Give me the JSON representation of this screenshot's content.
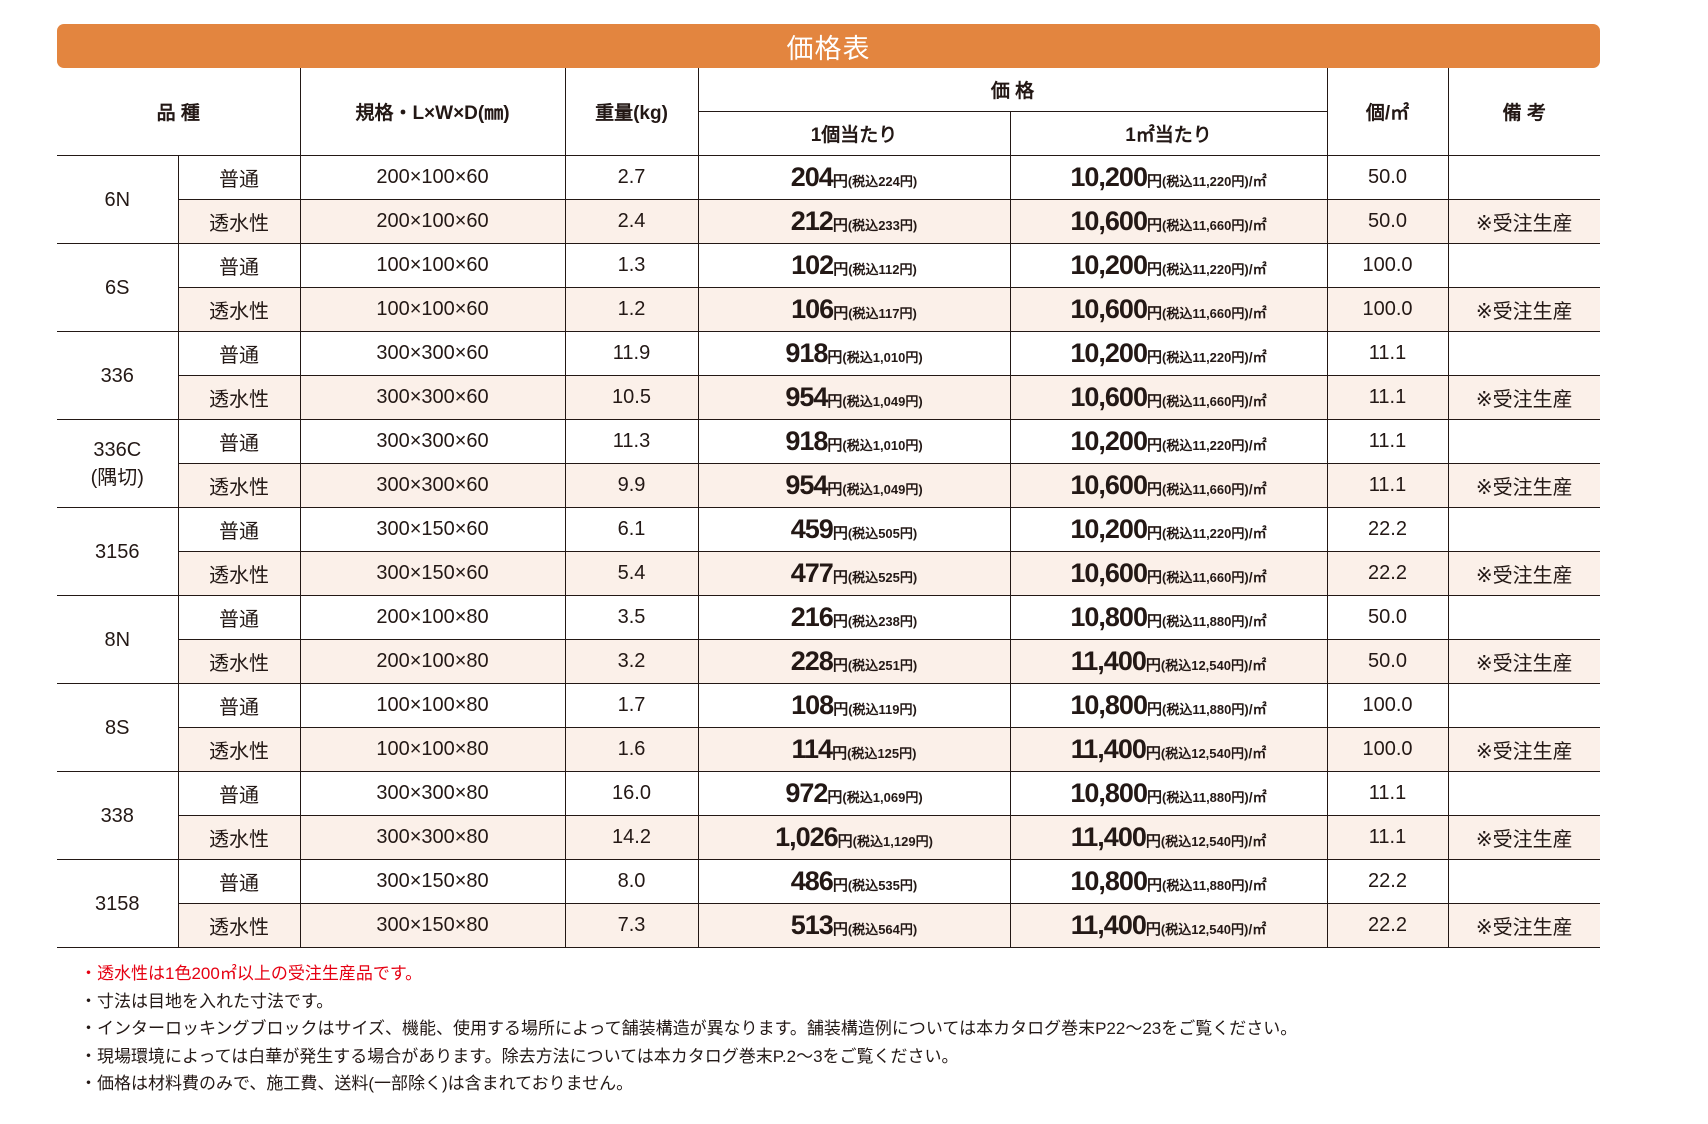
{
  "title": "価格表",
  "header": {
    "variety": "品 種",
    "spec": "規格・L×W×D(㎜)",
    "weight": "重量(kg)",
    "price": "価 格",
    "per_piece": "1個当たり",
    "per_m2": "1㎡当たり",
    "pieces_per_m2": "個/㎡",
    "remarks": "備 考"
  },
  "currency": "円",
  "tax_prefix": "(税込",
  "tax_suffix": "円)",
  "per_m2_suffix": "/㎡",
  "groups": [
    {
      "name": "6N",
      "rows": [
        {
          "type": "普通",
          "spec": "200×100×60",
          "weight": "2.7",
          "unit_price": "204",
          "unit_tax": "224",
          "m2_price": "10,200",
          "m2_tax": "11,220",
          "pcs": "50.0",
          "remark": ""
        },
        {
          "type": "透水性",
          "spec": "200×100×60",
          "weight": "2.4",
          "unit_price": "212",
          "unit_tax": "233",
          "m2_price": "10,600",
          "m2_tax": "11,660",
          "pcs": "50.0",
          "remark": "※受注生産"
        }
      ]
    },
    {
      "name": "6S",
      "rows": [
        {
          "type": "普通",
          "spec": "100×100×60",
          "weight": "1.3",
          "unit_price": "102",
          "unit_tax": "112",
          "m2_price": "10,200",
          "m2_tax": "11,220",
          "pcs": "100.0",
          "remark": ""
        },
        {
          "type": "透水性",
          "spec": "100×100×60",
          "weight": "1.2",
          "unit_price": "106",
          "unit_tax": "117",
          "m2_price": "10,600",
          "m2_tax": "11,660",
          "pcs": "100.0",
          "remark": "※受注生産"
        }
      ]
    },
    {
      "name": "336",
      "rows": [
        {
          "type": "普通",
          "spec": "300×300×60",
          "weight": "11.9",
          "unit_price": "918",
          "unit_tax": "1,010",
          "m2_price": "10,200",
          "m2_tax": "11,220",
          "pcs": "11.1",
          "remark": ""
        },
        {
          "type": "透水性",
          "spec": "300×300×60",
          "weight": "10.5",
          "unit_price": "954",
          "unit_tax": "1,049",
          "m2_price": "10,600",
          "m2_tax": "11,660",
          "pcs": "11.1",
          "remark": "※受注生産"
        }
      ]
    },
    {
      "name": "336C",
      "sub": "(隅切)",
      "rows": [
        {
          "type": "普通",
          "spec": "300×300×60",
          "weight": "11.3",
          "unit_price": "918",
          "unit_tax": "1,010",
          "m2_price": "10,200",
          "m2_tax": "11,220",
          "pcs": "11.1",
          "remark": ""
        },
        {
          "type": "透水性",
          "spec": "300×300×60",
          "weight": "9.9",
          "unit_price": "954",
          "unit_tax": "1,049",
          "m2_price": "10,600",
          "m2_tax": "11,660",
          "pcs": "11.1",
          "remark": "※受注生産"
        }
      ]
    },
    {
      "name": "3156",
      "rows": [
        {
          "type": "普通",
          "spec": "300×150×60",
          "weight": "6.1",
          "unit_price": "459",
          "unit_tax": "505",
          "m2_price": "10,200",
          "m2_tax": "11,220",
          "pcs": "22.2",
          "remark": ""
        },
        {
          "type": "透水性",
          "spec": "300×150×60",
          "weight": "5.4",
          "unit_price": "477",
          "unit_tax": "525",
          "m2_price": "10,600",
          "m2_tax": "11,660",
          "pcs": "22.2",
          "remark": "※受注生産"
        }
      ]
    },
    {
      "name": "8N",
      "rows": [
        {
          "type": "普通",
          "spec": "200×100×80",
          "weight": "3.5",
          "unit_price": "216",
          "unit_tax": "238",
          "m2_price": "10,800",
          "m2_tax": "11,880",
          "pcs": "50.0",
          "remark": ""
        },
        {
          "type": "透水性",
          "spec": "200×100×80",
          "weight": "3.2",
          "unit_price": "228",
          "unit_tax": "251",
          "m2_price": "11,400",
          "m2_tax": "12,540",
          "pcs": "50.0",
          "remark": "※受注生産"
        }
      ]
    },
    {
      "name": "8S",
      "rows": [
        {
          "type": "普通",
          "spec": "100×100×80",
          "weight": "1.7",
          "unit_price": "108",
          "unit_tax": "119",
          "m2_price": "10,800",
          "m2_tax": "11,880",
          "pcs": "100.0",
          "remark": ""
        },
        {
          "type": "透水性",
          "spec": "100×100×80",
          "weight": "1.6",
          "unit_price": "114",
          "unit_tax": "125",
          "m2_price": "11,400",
          "m2_tax": "12,540",
          "pcs": "100.0",
          "remark": "※受注生産"
        }
      ]
    },
    {
      "name": "338",
      "rows": [
        {
          "type": "普通",
          "spec": "300×300×80",
          "weight": "16.0",
          "unit_price": "972",
          "unit_tax": "1,069",
          "m2_price": "10,800",
          "m2_tax": "11,880",
          "pcs": "11.1",
          "remark": ""
        },
        {
          "type": "透水性",
          "spec": "300×300×80",
          "weight": "14.2",
          "unit_price": "1,026",
          "unit_tax": "1,129",
          "m2_price": "11,400",
          "m2_tax": "12,540",
          "pcs": "11.1",
          "remark": "※受注生産"
        }
      ]
    },
    {
      "name": "3158",
      "rows": [
        {
          "type": "普通",
          "spec": "300×150×80",
          "weight": "8.0",
          "unit_price": "486",
          "unit_tax": "535",
          "m2_price": "10,800",
          "m2_tax": "11,880",
          "pcs": "22.2",
          "remark": ""
        },
        {
          "type": "透水性",
          "spec": "300×150×80",
          "weight": "7.3",
          "unit_price": "513",
          "unit_tax": "564",
          "m2_price": "11,400",
          "m2_tax": "12,540",
          "pcs": "22.2",
          "remark": "※受注生産"
        }
      ]
    }
  ],
  "notes": [
    {
      "text": "・透水性は1色200㎡以上の受注生産品です。",
      "color": "#e60012"
    },
    {
      "text": "・寸法は目地を入れた寸法です。"
    },
    {
      "text": "・インターロッキングブロックはサイズ、機能、使用する場所によって舗装構造が異なります。舗装構造例については本カタログ巻末P22〜23をご覧ください。"
    },
    {
      "text": "・現場環境によっては白華が発生する場合があります。除去方法については本カタログ巻末P.2〜3をご覧ください。"
    },
    {
      "text": "・価格は材料費のみで、施工費、送料(一部除く)は含まれておりません。"
    }
  ],
  "colors": {
    "title_bar": "#e3853f",
    "permeable_row_bg": "#fbf0e9",
    "note_red": "#e60012"
  }
}
